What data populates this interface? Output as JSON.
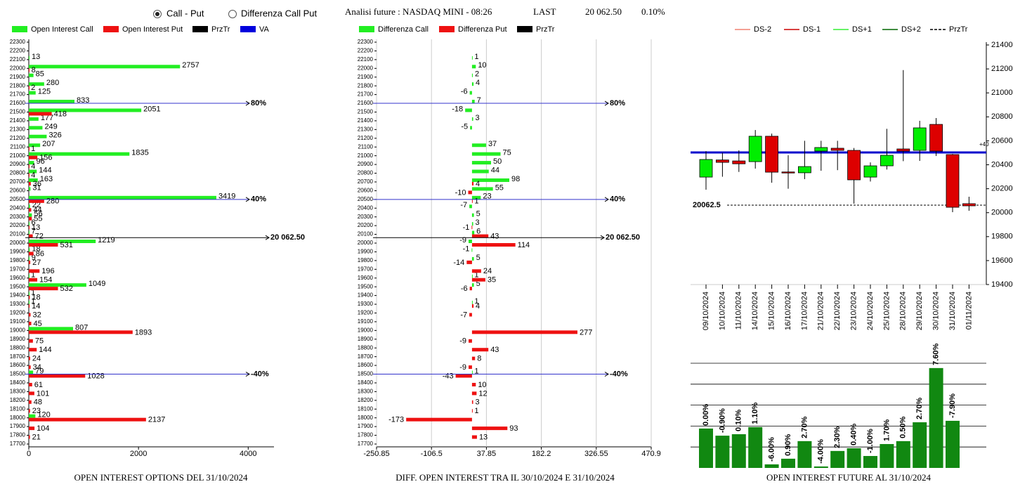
{
  "header": {
    "options": [
      "Call - Put",
      "Differenza Call Put"
    ],
    "selected": 0,
    "title": "Analisi future : NASDAQ MINI - 08:26",
    "last_label": "LAST",
    "last_value": "20 062.50",
    "change": "0.10%"
  },
  "chart_data": [
    {
      "type": "hbar",
      "title": "OPEN INTEREST OPTIONS DEL 31/10/2024",
      "categories": [
        22300,
        22200,
        22100,
        22000,
        21900,
        21800,
        21700,
        21600,
        21500,
        21400,
        21300,
        21200,
        21100,
        21000,
        20900,
        20800,
        20700,
        20600,
        20500,
        20400,
        20300,
        20200,
        20100,
        20000,
        19900,
        19800,
        19700,
        19600,
        19500,
        19400,
        19300,
        19200,
        19100,
        19000,
        18900,
        18800,
        18700,
        18600,
        18500,
        18400,
        18300,
        18200,
        18100,
        18000,
        17900,
        17800,
        17700
      ],
      "ylim": [
        17700,
        22300
      ],
      "xlim": [
        0,
        4470
      ],
      "xticks": [
        0,
        2000,
        4000
      ],
      "grid": false,
      "series": [
        {
          "name": "Open Interest Call",
          "color": "#22ee22",
          "values": [
            null,
            null,
            13,
            2757,
            85,
            280,
            125,
            833,
            2051,
            177,
            249,
            326,
            207,
            1835,
            96,
            144,
            163,
            31,
            3419,
            22,
            56,
            6,
            7,
            1219,
            18,
            9,
            null,
            1,
            1049,
            1,
            1,
            null,
            null,
            807,
            null,
            null,
            null,
            null,
            79,
            null,
            null,
            null,
            null,
            120,
            null,
            null,
            null
          ]
        },
        {
          "name": "Open Interest Put",
          "color": "#ee1111",
          "values": [
            null,
            null,
            null,
            8,
            null,
            2,
            null,
            null,
            418,
            null,
            null,
            null,
            1,
            156,
            4,
            4,
            36,
            null,
            280,
            44,
            55,
            13,
            72,
            531,
            86,
            27,
            196,
            154,
            532,
            18,
            14,
            32,
            45,
            1893,
            75,
            144,
            24,
            34,
            1028,
            61,
            101,
            48,
            23,
            2137,
            104,
            21,
            null
          ]
        }
      ],
      "legend": [
        {
          "name": "Open Interest Call",
          "color": "#22ee22"
        },
        {
          "name": "Open Interest Put",
          "color": "#ee1111"
        },
        {
          "name": "PrzTr",
          "color": "#000000"
        },
        {
          "name": "VA",
          "color": "#0000dd"
        }
      ],
      "annotations": [
        {
          "label": "80%",
          "value": 21600,
          "color": "#3333cc"
        },
        {
          "label": "40%",
          "value": 20500,
          "color": "#3333cc"
        },
        {
          "label": "20 062.50",
          "value": 20062.5,
          "color": "#000000"
        },
        {
          "label": "-40%",
          "value": 18500,
          "color": "#3333cc"
        }
      ]
    },
    {
      "type": "hbar",
      "title": "DIFF. OPEN INTEREST TRA IL 30/10/2024 E 31/10/2024",
      "categories": [
        22300,
        22200,
        22100,
        22000,
        21900,
        21800,
        21700,
        21600,
        21500,
        21400,
        21300,
        21200,
        21100,
        21000,
        20900,
        20800,
        20700,
        20600,
        20500,
        20400,
        20300,
        20200,
        20100,
        20000,
        19900,
        19800,
        19700,
        19600,
        19500,
        19400,
        19300,
        19200,
        19100,
        19000,
        18900,
        18800,
        18700,
        18600,
        18500,
        18400,
        18300,
        18200,
        18100,
        18000,
        17900,
        17800,
        17700
      ],
      "ylim": [
        17700,
        22300
      ],
      "xlim": [
        -250.85,
        470.9
      ],
      "xticks": [
        -250.85,
        -106.5,
        37.85,
        182.2,
        326.55,
        470.9
      ],
      "grid": true,
      "series": [
        {
          "name": "Differenza Call",
          "color": "#22ee22",
          "values": [
            null,
            null,
            1,
            10,
            2,
            4,
            -6,
            7,
            -18,
            3,
            -5,
            null,
            37,
            75,
            50,
            44,
            98,
            55,
            23,
            -7,
            5,
            3,
            6,
            -9,
            -1,
            5,
            null,
            1,
            5,
            null,
            1,
            null,
            null,
            null,
            null,
            null,
            null,
            null,
            1,
            null,
            null,
            null,
            null,
            null,
            null,
            null,
            null
          ]
        },
        {
          "name": "Differenza Put",
          "color": "#ee1111",
          "values": [
            null,
            null,
            null,
            null,
            null,
            null,
            null,
            null,
            null,
            null,
            null,
            null,
            null,
            null,
            null,
            null,
            4,
            -10,
            1,
            null,
            null,
            -1,
            43,
            114,
            null,
            -14,
            24,
            35,
            -6,
            null,
            4,
            -7,
            null,
            277,
            -9,
            43,
            8,
            -9,
            -43,
            10,
            12,
            3,
            1,
            -173,
            93,
            13,
            null
          ]
        }
      ],
      "legend": [
        {
          "name": "Differenza Call",
          "color": "#22ee22"
        },
        {
          "name": "Differenza Put",
          "color": "#ee1111"
        },
        {
          "name": "PrzTr",
          "color": "#000000"
        }
      ],
      "annotations": [
        {
          "label": "80%",
          "value": 21600,
          "color": "#3333cc"
        },
        {
          "label": "40%",
          "value": 20500,
          "color": "#3333cc"
        },
        {
          "label": "20 062.50",
          "value": 20062.5,
          "color": "#000000"
        },
        {
          "label": "-40%",
          "value": 18500,
          "color": "#3333cc"
        }
      ]
    },
    {
      "type": "candlestick",
      "x": [
        "09/10/2024",
        "10/10/2024",
        "11/10/2024",
        "14/10/2024",
        "15/10/2024",
        "16/10/2024",
        "17/10/2024",
        "21/10/2024",
        "22/10/2024",
        "23/10/2024",
        "24/10/2024",
        "25/10/2024",
        "28/10/2024",
        "29/10/2024",
        "30/10/2024",
        "31/10/2024",
        "01/11/2024"
      ],
      "open": [
        20297,
        20440,
        20432,
        20426,
        20638,
        20340,
        20333,
        20514,
        20538,
        20520,
        20297,
        20391,
        20532,
        20520,
        20737,
        20485,
        20075
      ],
      "close": [
        20444,
        20420,
        20408,
        20638,
        20338,
        20335,
        20385,
        20544,
        20520,
        20274,
        20391,
        20479,
        20514,
        20708,
        20514,
        20045,
        20057
      ],
      "high": [
        20514,
        20500,
        20520,
        20690,
        20660,
        20480,
        20600,
        20600,
        20600,
        20540,
        20420,
        20700,
        21190,
        20767,
        20790,
        20490,
        20133
      ],
      "low": [
        20192,
        20300,
        20340,
        20368,
        20250,
        20200,
        20280,
        20350,
        20355,
        20075,
        20260,
        20360,
        20430,
        20432,
        20473,
        20004,
        20016
      ],
      "up_color": "#00ee00",
      "down_color": "#dd0000",
      "ylim": [
        19400,
        21400
      ],
      "yticks": [
        19400,
        19600,
        19800,
        20000,
        20200,
        20400,
        20600,
        20800,
        21000,
        21200,
        21400
      ],
      "legend": [
        {
          "name": "DS-2",
          "color": "#f08070"
        },
        {
          "name": "DS-1",
          "color": "#cc0000"
        },
        {
          "name": "DS+1",
          "color": "#33ee33"
        },
        {
          "name": "DS+2",
          "color": "#006600"
        },
        {
          "name": "PrzTr",
          "color": "#000000",
          "dash": true
        }
      ],
      "annotations": [
        {
          "label": "+40",
          "value": 20503,
          "color": "#0000cc"
        },
        {
          "label": "20062.5",
          "value": 20062.5,
          "color": "#000000",
          "dash": true
        }
      ]
    },
    {
      "type": "bar",
      "title": "OPEN INTEREST FUTURE AL 31/10/2024",
      "color": "#118811",
      "heights": [
        1.88,
        1.54,
        1.61,
        1.95,
        0.17,
        0.44,
        1.28,
        0.07,
        0.81,
        0.94,
        0.57,
        1.14,
        1.28,
        2.18,
        4.77,
        2.25
      ],
      "values": [
        0,
        -0.9,
        0.1,
        1.1,
        -6,
        0.9,
        2.7,
        -4,
        2.3,
        0.4,
        -1,
        1.7,
        0.5,
        2.7,
        7.6,
        -7.9
      ],
      "value_labels": [
        "0.00%",
        "-0.90%",
        "0.10%",
        "1.10%",
        "-6.00%",
        "0.90%",
        "2.70%",
        "-4.00%",
        "2.30%",
        "0.40%",
        "-1.00%",
        "1.70%",
        "0.50%",
        "2.70%",
        "7.60%",
        "-7.90%"
      ],
      "ylim": [
        0,
        5
      ],
      "yticks": [
        1,
        2,
        3,
        4,
        5
      ],
      "grid": true
    }
  ]
}
